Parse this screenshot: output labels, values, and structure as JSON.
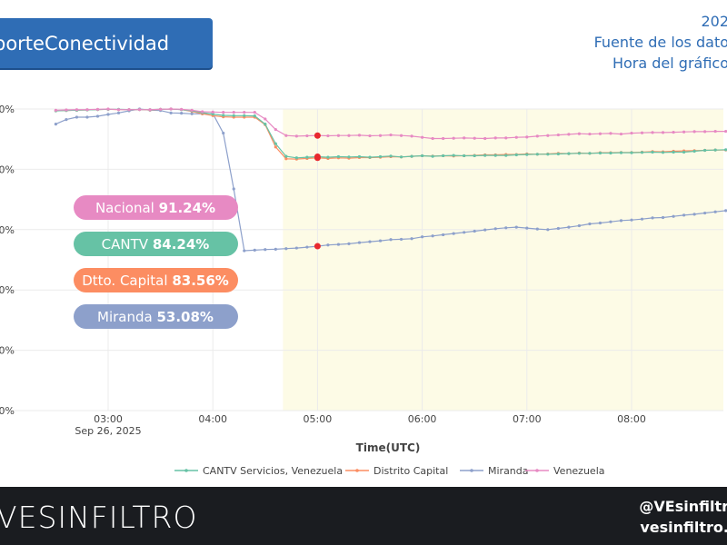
{
  "header": {
    "title": "porteConectividad",
    "year": "202",
    "source": "Fuente de los dato",
    "chart_time": "Hora del gráfico"
  },
  "footer": {
    "brand_prefix": "VE",
    "brand_suffix": "SINFILTRO",
    "handle": "@VEsinfiltr",
    "site": "vesinfiltro."
  },
  "colors": {
    "accent": "#2f6db5",
    "cantv": "#66c2a5",
    "dc": "#fc8d62",
    "miranda": "#8da0cb",
    "venezuela": "#e78ac3",
    "highlight_bg": "#fdfbe6",
    "marker": "#e8292e"
  },
  "chart_data": {
    "type": "line",
    "xlabel": "Time(UTC)",
    "x_ticks": [
      "03:00",
      "04:00",
      "05:00",
      "06:00",
      "07:00",
      "08:00",
      "0"
    ],
    "x_tick_sub": "Sep 26, 2025",
    "y_ticks": [
      "0%",
      "0%",
      "0%",
      "0%",
      "0%",
      "0%"
    ],
    "ylim": [
      0,
      100
    ],
    "xlim": [
      2.7,
      9.0
    ],
    "highlight_x_start": 4.67,
    "marker_x": 5.0,
    "grid": true,
    "legend_position": "bottom",
    "x": [
      2.5,
      2.6,
      2.7,
      2.8,
      2.9,
      3.0,
      3.1,
      3.2,
      3.3,
      3.4,
      3.5,
      3.6,
      3.7,
      3.8,
      3.9,
      4.0,
      4.1,
      4.2,
      4.3,
      4.4,
      4.5,
      4.6,
      4.7,
      4.8,
      4.9,
      5.0,
      5.1,
      5.2,
      5.3,
      5.4,
      5.5,
      5.6,
      5.7,
      5.8,
      5.9,
      6.0,
      6.1,
      6.2,
      6.3,
      6.4,
      6.5,
      6.6,
      6.7,
      6.8,
      6.9,
      7.0,
      7.1,
      7.2,
      7.3,
      7.4,
      7.5,
      7.6,
      7.7,
      7.8,
      7.9,
      8.0,
      8.1,
      8.2,
      8.3,
      8.4,
      8.5,
      8.6,
      8.7,
      8.8,
      8.9,
      9.0
    ],
    "series": [
      {
        "name": "CANTV Servicios, Venezuela",
        "color_key": "cantv",
        "badge_label": "CANTV",
        "badge_value": "84.24%",
        "values": [
          99.4,
          99.5,
          99.6,
          99.7,
          99.8,
          99.9,
          99.9,
          99.8,
          99.8,
          99.8,
          99.9,
          100.0,
          99.8,
          99.4,
          98.8,
          98.3,
          97.9,
          97.8,
          97.8,
          97.7,
          95.0,
          88.5,
          84.3,
          83.8,
          84.0,
          84.2,
          84.0,
          84.2,
          84.1,
          84.2,
          84.0,
          84.2,
          84.4,
          84.1,
          84.3,
          84.5,
          84.3,
          84.5,
          84.6,
          84.5,
          84.5,
          84.6,
          84.6,
          84.6,
          84.8,
          84.9,
          85.0,
          85.0,
          85.1,
          85.2,
          85.3,
          85.3,
          85.4,
          85.4,
          85.5,
          85.5,
          85.6,
          85.7,
          85.6,
          85.7,
          85.7,
          86.0,
          86.3,
          86.4,
          86.5,
          86.6
        ]
      },
      {
        "name": "Distrito Capital",
        "color_key": "dc",
        "badge_label": "Dtto. Capital",
        "badge_value": "83.56%",
        "values": [
          99.4,
          99.5,
          99.6,
          99.7,
          99.8,
          99.9,
          99.8,
          99.8,
          99.8,
          99.7,
          99.9,
          100.0,
          99.8,
          99.2,
          98.4,
          97.8,
          97.4,
          97.3,
          97.3,
          97.3,
          94.8,
          87.4,
          83.5,
          83.4,
          83.6,
          83.8,
          83.6,
          83.8,
          83.7,
          83.9,
          83.9,
          84.0,
          84.2,
          84.1,
          84.3,
          84.5,
          84.4,
          84.5,
          84.4,
          84.5,
          84.6,
          84.8,
          84.8,
          84.9,
          84.9,
          85.1,
          85.0,
          85.1,
          85.3,
          85.2,
          85.4,
          85.3,
          85.5,
          85.5,
          85.6,
          85.6,
          85.7,
          85.9,
          85.8,
          86.0,
          86.1,
          86.2,
          86.3,
          86.4,
          86.4,
          86.5
        ]
      },
      {
        "name": "Miranda",
        "color_key": "miranda",
        "badge_label": "Miranda",
        "badge_value": "53.08%",
        "values": [
          95.0,
          96.5,
          97.3,
          97.3,
          97.6,
          98.2,
          98.7,
          99.4,
          100.0,
          99.6,
          99.5,
          98.7,
          98.6,
          98.4,
          98.4,
          98.5,
          92.0,
          73.5,
          53.0,
          53.2,
          53.4,
          53.5,
          53.7,
          53.9,
          54.2,
          54.5,
          54.9,
          55.1,
          55.3,
          55.7,
          56.0,
          56.3,
          56.7,
          56.8,
          57.0,
          57.6,
          57.9,
          58.3,
          58.7,
          59.1,
          59.5,
          59.9,
          60.3,
          60.6,
          60.8,
          60.5,
          60.2,
          60.0,
          60.4,
          60.8,
          61.3,
          61.9,
          62.2,
          62.6,
          63.0,
          63.2,
          63.5,
          63.9,
          64.0,
          64.4,
          64.8,
          65.1,
          65.5,
          65.9,
          66.3,
          66.7
        ]
      },
      {
        "name": "Venezuela",
        "color_key": "venezuela",
        "badge_label": "Nacional",
        "badge_value": "91.24%",
        "values": [
          99.6,
          99.7,
          99.8,
          99.8,
          99.9,
          100.0,
          99.8,
          99.8,
          99.8,
          99.8,
          99.9,
          100.0,
          99.9,
          99.6,
          99.1,
          99.0,
          98.9,
          98.9,
          98.9,
          98.9,
          96.7,
          93.2,
          91.2,
          91.0,
          91.1,
          91.2,
          91.1,
          91.2,
          91.2,
          91.3,
          91.1,
          91.2,
          91.4,
          91.2,
          91.0,
          90.6,
          90.2,
          90.2,
          90.3,
          90.4,
          90.3,
          90.2,
          90.4,
          90.4,
          90.6,
          90.7,
          91.0,
          91.2,
          91.4,
          91.6,
          91.8,
          91.7,
          91.8,
          91.9,
          91.7,
          92.0,
          92.1,
          92.2,
          92.2,
          92.3,
          92.4,
          92.5,
          92.5,
          92.6,
          92.6,
          92.7
        ]
      }
    ]
  }
}
